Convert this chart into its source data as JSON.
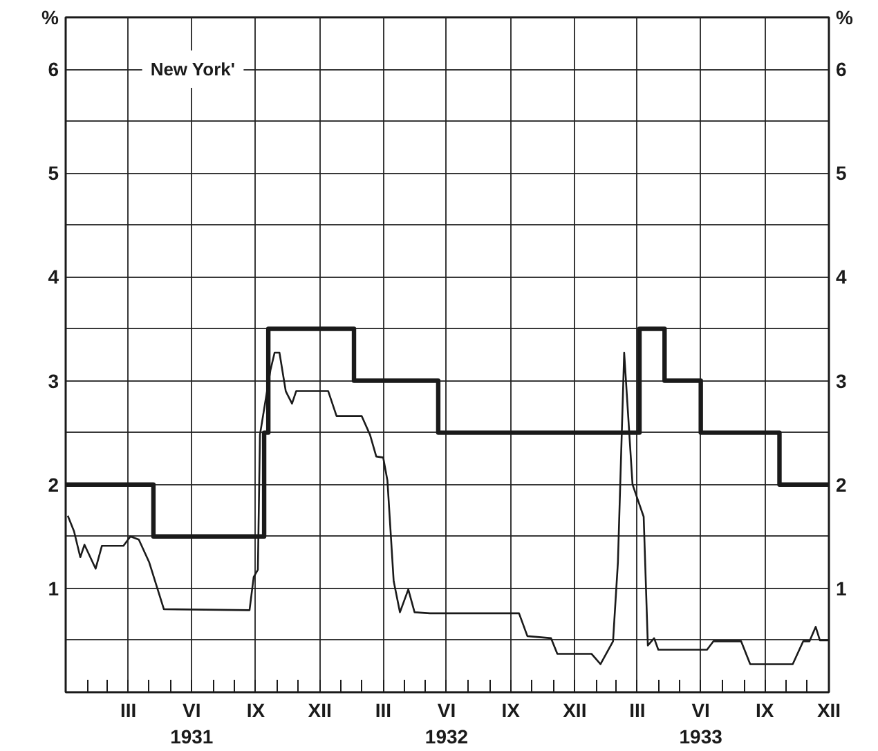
{
  "chart_data": {
    "type": "line",
    "title": "New York'",
    "ylabel": "%",
    "y2label": "%",
    "xlim": [
      "1931-01-01",
      "1934-01-01"
    ],
    "xticks": [
      {
        "value": "1931-02",
        "label": null
      },
      {
        "value": "1931-03",
        "label": null
      },
      {
        "value": "1931-04",
        "label": "III"
      },
      {
        "value": "1931-05",
        "label": null
      },
      {
        "value": "1931-06",
        "label": null
      },
      {
        "value": "1931-07",
        "label": "VI\n1931"
      },
      {
        "value": "1931-08",
        "label": null
      },
      {
        "value": "1931-09",
        "label": null
      },
      {
        "value": "1931-10",
        "label": "IX"
      },
      {
        "value": "1931-11",
        "label": null
      },
      {
        "value": "1931-12",
        "label": null
      },
      {
        "value": "1932-01",
        "label": "XII"
      },
      {
        "value": "1932-02",
        "label": null
      },
      {
        "value": "1932-03",
        "label": null
      },
      {
        "value": "1932-04",
        "label": "III"
      },
      {
        "value": "1932-05",
        "label": null
      },
      {
        "value": "1932-06",
        "label": null
      },
      {
        "value": "1932-07",
        "label": "VI\n1932"
      },
      {
        "value": "1932-08",
        "label": null
      },
      {
        "value": "1932-09",
        "label": null
      },
      {
        "value": "1932-10",
        "label": "IX"
      },
      {
        "value": "1932-11",
        "label": null
      },
      {
        "value": "1932-12",
        "label": null
      },
      {
        "value": "1933-01",
        "label": "XII"
      },
      {
        "value": "1933-02",
        "label": null
      },
      {
        "value": "1933-03",
        "label": null
      },
      {
        "value": "1933-04",
        "label": "III"
      },
      {
        "value": "1933-05",
        "label": null
      },
      {
        "value": "1933-06",
        "label": null
      },
      {
        "value": "1933-07",
        "label": "VI\n1933"
      },
      {
        "value": "1933-08",
        "label": null
      },
      {
        "value": "1933-09",
        "label": null
      },
      {
        "value": "1933-10",
        "label": "IX"
      },
      {
        "value": "1933-11",
        "label": null
      },
      {
        "value": "1933-12",
        "label": null
      },
      {
        "value": "1934-01",
        "label": "XII"
      }
    ],
    "ylim": [
      0,
      6.5
    ],
    "yticks": [
      {
        "value": 0,
        "label": null
      },
      {
        "value": 0.5,
        "label": null
      },
      1,
      {
        "value": 1.5,
        "label": null
      },
      2,
      {
        "value": 2.5,
        "label": null
      },
      3,
      {
        "value": 3.5,
        "label": null
      },
      4,
      {
        "value": 4.5,
        "label": null
      },
      5,
      {
        "value": 5.5,
        "label": null
      },
      6
    ],
    "y2lim": [
      0,
      6.5
    ],
    "y2ticks": [
      1,
      2,
      3,
      4,
      5,
      6
    ],
    "grid": true,
    "series": [
      {
        "type": "step",
        "color": "#1a1a1a",
        "x": [
          "1931-01-01",
          "1931-05-07",
          "1931-10-13",
          "1931-10-19",
          "1932-02-19",
          "1932-06-19",
          "1933-04-04",
          "1933-05-10",
          "1933-07-01",
          "1933-10-22",
          "1934-01-01"
        ],
        "values": [
          2,
          1.5,
          2.5,
          3.5,
          3,
          2.5,
          3.5,
          3,
          2.5,
          2,
          2
        ]
      },
      {
        "color": "#1a1a1a",
        "x": [
          "1931-01-04",
          "1931-01-13",
          "1931-01-22",
          "1931-01-28",
          "1931-02-13",
          "1931-02-22",
          "1931-03-25",
          "1931-04-04",
          "1931-04-16",
          "1931-05-01",
          "1931-05-22",
          "1931-09-22",
          "1931-09-28",
          "1931-10-04",
          "1931-10-07",
          "1931-10-22",
          "1931-10-28",
          "1931-11-04",
          "1931-11-13",
          "1931-11-22",
          "1931-11-28",
          "1932-01-13",
          "1932-01-25",
          "1932-03-01",
          "1932-03-13",
          "1932-03-22",
          "1932-04-01",
          "1932-04-07",
          "1932-04-16",
          "1932-04-25",
          "1932-05-07",
          "1932-05-16",
          "1932-06-07",
          "1932-10-13",
          "1932-10-25",
          "1932-11-28",
          "1932-12-07",
          "1933-01-25",
          "1933-02-07",
          "1933-02-25",
          "1933-03-04",
          "1933-03-13",
          "1933-03-25",
          "1933-04-10",
          "1933-04-16",
          "1933-04-25",
          "1933-05-01",
          "1933-07-10",
          "1933-07-19",
          "1933-08-28",
          "1933-09-10",
          "1933-11-10",
          "1933-11-25",
          "1933-12-04",
          "1933-12-13",
          "1933-12-19",
          "1934-01-01"
        ],
        "values": [
          1.7,
          1.55,
          1.3,
          1.42,
          1.19,
          1.41,
          1.41,
          1.5,
          1.47,
          1.25,
          0.8,
          0.79,
          1.11,
          1.18,
          2.48,
          3.1,
          3.27,
          3.27,
          2.9,
          2.78,
          2.9,
          2.9,
          2.66,
          2.66,
          2.48,
          2.27,
          2.26,
          2.04,
          1.07,
          0.77,
          0.99,
          0.77,
          0.76,
          0.76,
          0.54,
          0.52,
          0.37,
          0.37,
          0.27,
          0.49,
          1.25,
          3.27,
          2.0,
          1.69,
          0.45,
          0.52,
          0.41,
          0.41,
          0.49,
          0.49,
          0.27,
          0.27,
          0.49,
          0.49,
          0.63,
          0.5,
          0.5
        ]
      }
    ]
  }
}
